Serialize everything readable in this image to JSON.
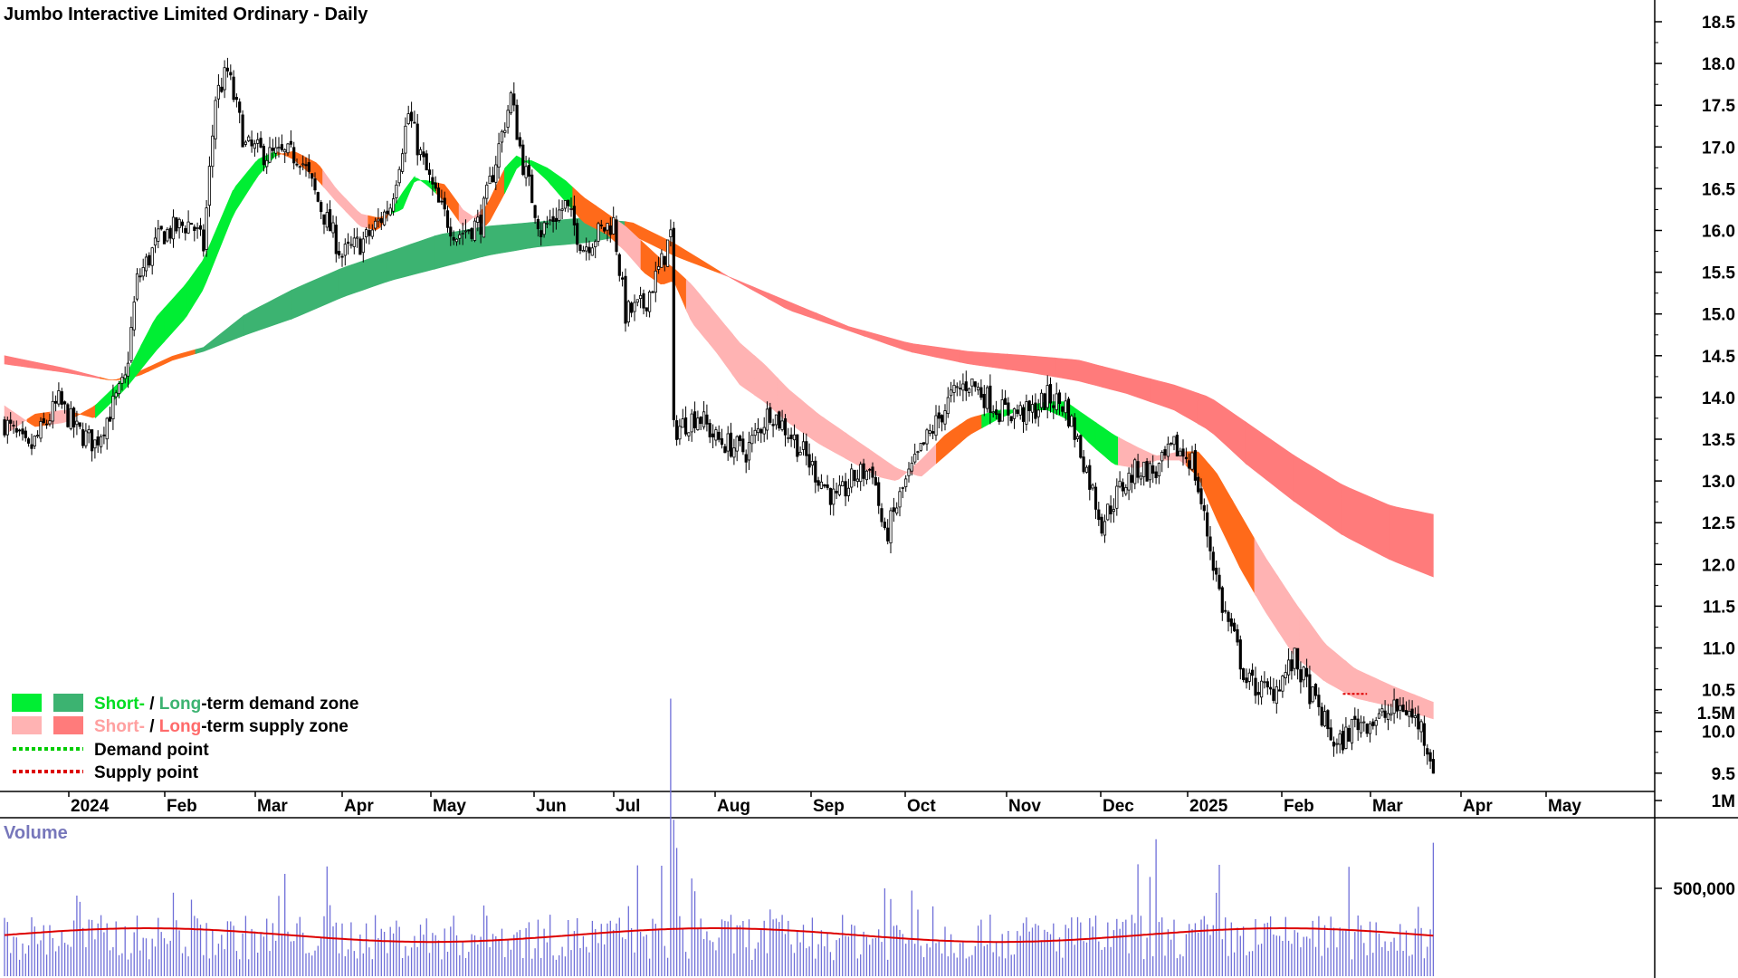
{
  "title": "Jumbo Interactive Limited Ordinary - Daily",
  "volume_title": "Volume",
  "legend": {
    "demand_zone": {
      "short": "Short-",
      "sep": " / ",
      "long": "Long",
      "rest": "-term demand zone"
    },
    "supply_zone": {
      "short": "Short-",
      "sep": " / ",
      "long": "Long",
      "rest": "-term supply zone"
    },
    "demand_point": "Demand point",
    "supply_point": "Supply point"
  },
  "colors": {
    "short_demand": "#00ee33",
    "long_demand": "#3cb371",
    "short_supply": "#ffb3b3",
    "long_supply": "#ff7b7b",
    "transition": "#ff6a1a",
    "candle": "#000000",
    "volume_bar": "#6f6fd8",
    "volume_avg": "#dd0000",
    "demand_point": "#00cc00",
    "supply_point": "#dd0000",
    "volume_title": "#7777bb"
  },
  "chart_data": {
    "type": "candlestick",
    "x_labels": [
      "2024",
      "Feb",
      "Mar",
      "Apr",
      "May",
      "Jun",
      "Jul",
      "Aug",
      "Sep",
      "Oct",
      "Nov",
      "Dec",
      "2025",
      "Feb",
      "Mar",
      "Apr",
      "May"
    ],
    "y_ticks": [
      "18.5",
      "18.0",
      "17.5",
      "17.0",
      "16.5",
      "16.0",
      "15.5",
      "15.0",
      "14.5",
      "14.0",
      "13.5",
      "13.0",
      "12.5",
      "12.0",
      "11.5",
      "11.0",
      "10.5",
      "10.0",
      "9.5"
    ],
    "ylim": [
      9.2,
      18.7
    ],
    "volume_ticks": [
      "1.5M",
      "1M",
      "500,000"
    ],
    "volume_ylim": [
      0,
      1700000
    ],
    "price_anchors": [
      [
        0,
        13.7
      ],
      [
        8,
        13.35
      ],
      [
        18,
        13.95
      ],
      [
        24,
        13.6
      ],
      [
        30,
        13.45
      ],
      [
        36,
        13.9
      ],
      [
        40,
        14.2
      ],
      [
        44,
        15.4
      ],
      [
        52,
        15.95
      ],
      [
        62,
        16.1
      ],
      [
        66,
        15.8
      ],
      [
        70,
        17.6
      ],
      [
        74,
        17.9
      ],
      [
        80,
        17.0
      ],
      [
        88,
        16.9
      ],
      [
        98,
        16.9
      ],
      [
        104,
        16.35
      ],
      [
        112,
        15.7
      ],
      [
        120,
        15.9
      ],
      [
        128,
        16.3
      ],
      [
        134,
        17.4
      ],
      [
        138,
        16.9
      ],
      [
        144,
        16.3
      ],
      [
        150,
        15.95
      ],
      [
        158,
        16.1
      ],
      [
        164,
        17.0
      ],
      [
        168,
        17.6
      ],
      [
        172,
        16.8
      ],
      [
        178,
        16.0
      ],
      [
        186,
        16.3
      ],
      [
        192,
        15.8
      ],
      [
        198,
        16.0
      ],
      [
        202,
        16.1
      ],
      [
        206,
        15.0
      ],
      [
        212,
        15.1
      ],
      [
        218,
        15.6
      ],
      [
        221,
        15.95
      ],
      [
        222,
        13.6
      ],
      [
        230,
        13.8
      ],
      [
        236,
        13.5
      ],
      [
        246,
        13.35
      ],
      [
        254,
        13.85
      ],
      [
        262,
        13.5
      ],
      [
        270,
        13.05
      ],
      [
        276,
        12.75
      ],
      [
        282,
        13.05
      ],
      [
        288,
        13.15
      ],
      [
        292,
        12.3
      ],
      [
        298,
        12.9
      ],
      [
        306,
        13.5
      ],
      [
        314,
        14.0
      ],
      [
        320,
        14.2
      ],
      [
        330,
        13.85
      ],
      [
        340,
        13.8
      ],
      [
        346,
        14.0
      ],
      [
        352,
        13.9
      ],
      [
        358,
        13.25
      ],
      [
        364,
        12.5
      ],
      [
        370,
        12.9
      ],
      [
        376,
        13.15
      ],
      [
        382,
        13.1
      ],
      [
        388,
        13.4
      ],
      [
        394,
        13.25
      ],
      [
        398,
        12.55
      ],
      [
        404,
        11.5
      ],
      [
        408,
        11.1
      ],
      [
        412,
        10.6
      ],
      [
        420,
        10.45
      ],
      [
        428,
        10.85
      ],
      [
        436,
        10.25
      ],
      [
        442,
        9.8
      ],
      [
        448,
        10.1
      ],
      [
        456,
        10.15
      ],
      [
        464,
        10.3
      ],
      [
        470,
        10.05
      ],
      [
        474,
        9.6
      ]
    ],
    "supply_point_x": 448,
    "supply_point_y": 10.45,
    "volume_spikes": [
      [
        221,
        1580000
      ],
      [
        222,
        890000
      ],
      [
        223,
        730000
      ],
      [
        292,
        500000
      ],
      [
        382,
        780000
      ],
      [
        474,
        760000
      ]
    ],
    "volume_average": 260000,
    "series": [
      {
        "name": "Short-term zone",
        "edge_a": [
          [
            0,
            13.9
          ],
          [
            10,
            13.65
          ],
          [
            20,
            13.7
          ],
          [
            30,
            13.9
          ],
          [
            40,
            14.25
          ],
          [
            50,
            14.95
          ],
          [
            60,
            15.35
          ],
          [
            66,
            15.65
          ],
          [
            76,
            16.5
          ],
          [
            84,
            16.85
          ],
          [
            90,
            16.95
          ],
          [
            96,
            16.85
          ],
          [
            104,
            16.6
          ],
          [
            110,
            16.35
          ],
          [
            118,
            16.05
          ],
          [
            124,
            16.0
          ],
          [
            132,
            16.45
          ],
          [
            136,
            16.65
          ],
          [
            140,
            16.55
          ],
          [
            146,
            16.35
          ],
          [
            152,
            16.05
          ],
          [
            160,
            16.3
          ],
          [
            166,
            16.75
          ],
          [
            170,
            16.9
          ],
          [
            174,
            16.8
          ],
          [
            180,
            16.6
          ],
          [
            186,
            16.35
          ],
          [
            192,
            16.1
          ],
          [
            200,
            15.95
          ],
          [
            206,
            15.75
          ],
          [
            212,
            15.5
          ],
          [
            218,
            15.35
          ],
          [
            222,
            15.4
          ],
          [
            228,
            14.9
          ],
          [
            236,
            14.55
          ],
          [
            244,
            14.15
          ],
          [
            252,
            13.95
          ],
          [
            260,
            13.7
          ],
          [
            270,
            13.45
          ],
          [
            280,
            13.25
          ],
          [
            290,
            13.05
          ],
          [
            296,
            13.0
          ],
          [
            304,
            13.25
          ],
          [
            312,
            13.55
          ],
          [
            320,
            13.75
          ],
          [
            330,
            13.85
          ],
          [
            340,
            13.85
          ],
          [
            346,
            13.85
          ],
          [
            352,
            13.75
          ],
          [
            360,
            13.45
          ],
          [
            368,
            13.2
          ],
          [
            376,
            13.15
          ],
          [
            382,
            13.25
          ],
          [
            390,
            13.25
          ],
          [
            396,
            13.05
          ],
          [
            402,
            12.55
          ],
          [
            410,
            11.95
          ],
          [
            418,
            11.45
          ],
          [
            428,
            10.9
          ],
          [
            438,
            10.6
          ],
          [
            448,
            10.4
          ],
          [
            460,
            10.3
          ],
          [
            474,
            10.15
          ]
        ],
        "edge_b": [
          [
            0,
            13.55
          ],
          [
            10,
            13.8
          ],
          [
            20,
            13.85
          ],
          [
            30,
            13.75
          ],
          [
            40,
            14.1
          ],
          [
            50,
            14.55
          ],
          [
            60,
            14.95
          ],
          [
            66,
            15.3
          ],
          [
            76,
            16.2
          ],
          [
            84,
            16.65
          ],
          [
            90,
            16.9
          ],
          [
            96,
            16.95
          ],
          [
            104,
            16.8
          ],
          [
            110,
            16.5
          ],
          [
            118,
            16.2
          ],
          [
            124,
            16.15
          ],
          [
            132,
            16.25
          ],
          [
            136,
            16.6
          ],
          [
            140,
            16.6
          ],
          [
            146,
            16.55
          ],
          [
            152,
            16.25
          ],
          [
            160,
            16.05
          ],
          [
            166,
            16.45
          ],
          [
            170,
            16.75
          ],
          [
            174,
            16.85
          ],
          [
            180,
            16.75
          ],
          [
            186,
            16.6
          ],
          [
            192,
            16.4
          ],
          [
            200,
            16.2
          ],
          [
            206,
            16.05
          ],
          [
            212,
            15.85
          ],
          [
            218,
            15.65
          ],
          [
            222,
            15.55
          ],
          [
            228,
            15.35
          ],
          [
            236,
            15.0
          ],
          [
            244,
            14.65
          ],
          [
            252,
            14.4
          ],
          [
            260,
            14.1
          ],
          [
            270,
            13.8
          ],
          [
            280,
            13.55
          ],
          [
            290,
            13.3
          ],
          [
            296,
            13.15
          ],
          [
            304,
            13.05
          ],
          [
            312,
            13.3
          ],
          [
            320,
            13.55
          ],
          [
            330,
            13.75
          ],
          [
            340,
            13.9
          ],
          [
            346,
            13.95
          ],
          [
            352,
            13.95
          ],
          [
            360,
            13.75
          ],
          [
            368,
            13.55
          ],
          [
            376,
            13.4
          ],
          [
            382,
            13.3
          ],
          [
            390,
            13.35
          ],
          [
            396,
            13.35
          ],
          [
            402,
            13.1
          ],
          [
            410,
            12.6
          ],
          [
            418,
            12.1
          ],
          [
            428,
            11.55
          ],
          [
            438,
            11.05
          ],
          [
            448,
            10.75
          ],
          [
            460,
            10.55
          ],
          [
            474,
            10.35
          ]
        ],
        "colors": [
          "#ffb3b3",
          "#ff6a1a",
          "#ffb3b3",
          "#ff6a1a",
          "#00ee33",
          "#00ee33",
          "#00ee33",
          "#00ee33",
          "#00ee33",
          "#00ee33",
          "#00ee33",
          "#00ee33",
          "#ff6a1a",
          "#ff6a1a",
          "#ffb3b3",
          "#ffb3b3",
          "#ff6a1a",
          "#00ee33",
          "#00ee33",
          "#ff6a1a",
          "#ffb3b3",
          "#ff6a1a",
          "#00ee33",
          "#00ee33",
          "#00ee33",
          "#ff6a1a",
          "#ff6a1a",
          "#ffb3b3",
          "#ff6a1a",
          "#ff6a1a",
          "#ffb3b3",
          "#ffb3b3",
          "#ffb3b3",
          "#ffb3b3",
          "#ffb3b3",
          "#ffb3b3",
          "#ffb3b3",
          "#ffb3b3",
          "#ffb3b3",
          "#ffb3b3",
          "#ffb3b3",
          "#ff6a1a",
          "#ff6a1a",
          "#00ee33",
          "#00ee33",
          "#00ee33",
          "#00ee33",
          "#00ee33",
          "#00ee33",
          "#ffb3b3",
          "#ffb3b3",
          "#ffb3b3",
          "#ff6a1a",
          "#ff6a1a",
          "#ff6a1a",
          "#ffb3b3",
          "#ffb3b3",
          "#ffb3b3",
          "#ffb3b3",
          "#ffb3b3",
          "#ffb3b3",
          "#ffb3b3",
          "#ffb3b3"
        ]
      },
      {
        "name": "Long-term zone",
        "edge_a": [
          [
            0,
            14.4
          ],
          [
            20,
            14.3
          ],
          [
            36,
            14.2
          ],
          [
            44,
            14.3
          ],
          [
            56,
            14.5
          ],
          [
            66,
            14.6
          ],
          [
            80,
            15.0
          ],
          [
            96,
            15.3
          ],
          [
            112,
            15.55
          ],
          [
            128,
            15.75
          ],
          [
            144,
            15.95
          ],
          [
            160,
            16.05
          ],
          [
            176,
            16.1
          ],
          [
            192,
            16.15
          ],
          [
            208,
            16.1
          ],
          [
            222,
            15.85
          ],
          [
            240,
            15.45
          ],
          [
            260,
            15.15
          ],
          [
            280,
            14.85
          ],
          [
            300,
            14.65
          ],
          [
            320,
            14.55
          ],
          [
            340,
            14.5
          ],
          [
            356,
            14.45
          ],
          [
            372,
            14.3
          ],
          [
            388,
            14.15
          ],
          [
            400,
            14.0
          ],
          [
            412,
            13.7
          ],
          [
            428,
            13.3
          ],
          [
            444,
            12.95
          ],
          [
            460,
            12.7
          ],
          [
            474,
            12.6
          ]
        ],
        "edge_b": [
          [
            0,
            14.5
          ],
          [
            20,
            14.35
          ],
          [
            36,
            14.2
          ],
          [
            44,
            14.25
          ],
          [
            56,
            14.45
          ],
          [
            66,
            14.55
          ],
          [
            80,
            14.75
          ],
          [
            96,
            14.95
          ],
          [
            112,
            15.2
          ],
          [
            128,
            15.4
          ],
          [
            144,
            15.55
          ],
          [
            160,
            15.7
          ],
          [
            176,
            15.8
          ],
          [
            192,
            15.85
          ],
          [
            208,
            15.95
          ],
          [
            222,
            15.7
          ],
          [
            240,
            15.45
          ],
          [
            260,
            15.05
          ],
          [
            280,
            14.8
          ],
          [
            300,
            14.55
          ],
          [
            320,
            14.4
          ],
          [
            340,
            14.3
          ],
          [
            356,
            14.2
          ],
          [
            372,
            14.05
          ],
          [
            388,
            13.85
          ],
          [
            400,
            13.6
          ],
          [
            412,
            13.2
          ],
          [
            428,
            12.75
          ],
          [
            444,
            12.35
          ],
          [
            460,
            12.05
          ],
          [
            474,
            11.85
          ]
        ],
        "colors": [
          "#ff7b7b",
          "#ff7b7b",
          "#ff6a1a",
          "#ff6a1a",
          "#3cb371",
          "#3cb371",
          "#3cb371",
          "#3cb371",
          "#3cb371",
          "#3cb371",
          "#3cb371",
          "#3cb371",
          "#3cb371",
          "#ff6a1a",
          "#ff6a1a",
          "#ff7b7b",
          "#ff7b7b",
          "#ff7b7b",
          "#ff7b7b",
          "#ff7b7b",
          "#ff7b7b",
          "#ff7b7b",
          "#ff7b7b",
          "#ff7b7b",
          "#ff7b7b",
          "#ff7b7b",
          "#ff7b7b",
          "#ff7b7b",
          "#ff7b7b",
          "#ff7b7b"
        ]
      }
    ]
  }
}
